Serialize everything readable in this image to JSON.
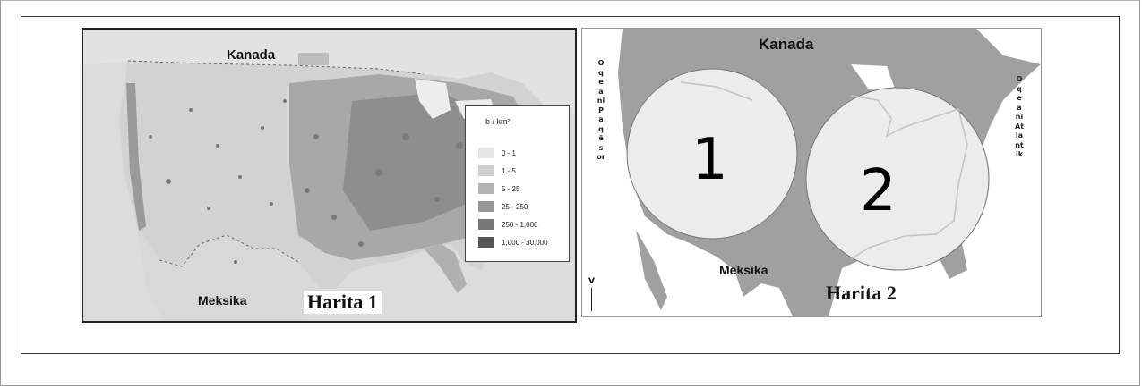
{
  "map1": {
    "country_north": "Kanada",
    "country_south": "Meksika",
    "caption": "Harita 1",
    "legend": {
      "title": "b / km²",
      "items": [
        {
          "label": "0 - 1",
          "color": "#e6e6e6"
        },
        {
          "label": "1 - 5",
          "color": "#cfcfcf"
        },
        {
          "label": "5 - 25",
          "color": "#b4b4b4"
        },
        {
          "label": "25 - 250",
          "color": "#969696"
        },
        {
          "label": "250 - 1,000",
          "color": "#777777"
        },
        {
          "label": "1,000 - 30,000",
          "color": "#555555"
        }
      ]
    }
  },
  "map2": {
    "country_north": "Kanada",
    "country_south": "Meksika",
    "caption": "Harita 2",
    "ocean_west": "Oqeani Paqësor",
    "ocean_east": "Oqeani Atlantik",
    "north_marker": "V",
    "region_1": "1",
    "region_2": "2"
  },
  "colors": {
    "land": "#a0a0a0",
    "circle_fill": "#ececec",
    "water": "#ffffff"
  }
}
